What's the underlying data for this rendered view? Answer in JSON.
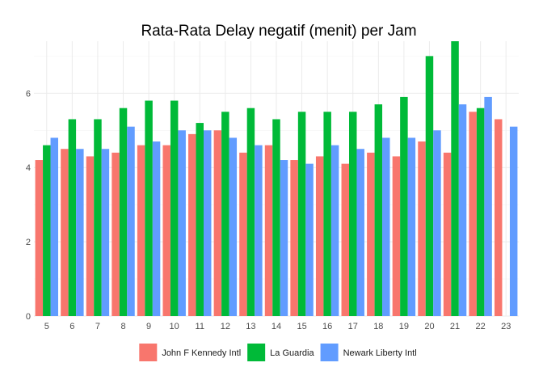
{
  "chart_data": {
    "type": "bar",
    "title": "Rata-Rata Delay negatif (menit) per Jam",
    "xlabel": "",
    "ylabel": "",
    "categories": [
      "5",
      "6",
      "7",
      "8",
      "9",
      "10",
      "11",
      "12",
      "13",
      "14",
      "15",
      "16",
      "17",
      "18",
      "19",
      "20",
      "21",
      "22",
      "23"
    ],
    "y_ticks": [
      "0",
      "2",
      "4",
      "6"
    ],
    "ylim": [
      0,
      7.4
    ],
    "grid": true,
    "legend_position": "bottom",
    "series": [
      {
        "name": "John F Kennedy Intl",
        "color": "#F8766D",
        "values": [
          4.2,
          4.5,
          4.3,
          4.4,
          4.6,
          4.6,
          4.9,
          5.0,
          4.4,
          4.6,
          4.2,
          4.3,
          4.1,
          4.4,
          4.3,
          4.7,
          4.4,
          5.5,
          5.3
        ]
      },
      {
        "name": "La Guardia",
        "color": "#00BA38",
        "values": [
          4.6,
          5.3,
          5.3,
          5.6,
          5.8,
          5.8,
          5.2,
          5.5,
          5.6,
          5.3,
          5.5,
          5.5,
          5.5,
          5.7,
          5.9,
          7.0,
          7.4,
          5.6,
          null
        ]
      },
      {
        "name": "Newark Liberty Intl",
        "color": "#619CFF",
        "values": [
          4.8,
          4.5,
          4.5,
          5.1,
          4.7,
          5.0,
          5.0,
          4.8,
          4.6,
          4.2,
          4.1,
          4.6,
          4.5,
          4.8,
          4.8,
          5.0,
          5.7,
          5.9,
          5.1
        ]
      }
    ]
  }
}
